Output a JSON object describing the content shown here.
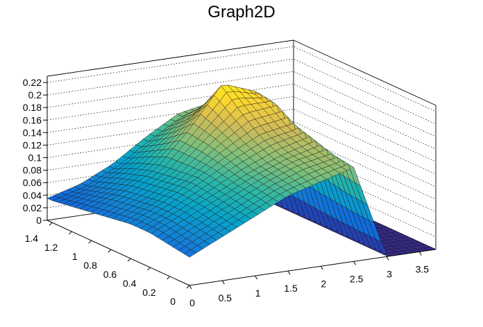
{
  "chart_data": {
    "type": "surface",
    "title": "Graph2D",
    "xlim": [
      0,
      3.75
    ],
    "ylim": [
      0,
      1.45
    ],
    "zlim": [
      0,
      0.23
    ],
    "x_ticks": [
      "0",
      "0.5",
      "1",
      "1.5",
      "2",
      "2.5",
      "3",
      "3.5"
    ],
    "y_ticks": [
      "0",
      "0.2",
      "0.4",
      "0.6",
      "0.8",
      "1",
      "1.2",
      "1.4"
    ],
    "z_ticks": [
      "0",
      "0.02",
      "0.04",
      "0.06",
      "0.08",
      "0.1",
      "0.12",
      "0.14",
      "0.16",
      "0.18",
      "0.2",
      "0.22"
    ],
    "x_values": [
      0,
      0.5,
      1,
      1.5,
      2,
      2.5,
      3,
      3.5
    ],
    "y_values": [
      0,
      0.2,
      0.4,
      0.6,
      0.8,
      1.0,
      1.2,
      1.4
    ],
    "z_values": [
      [
        0.045,
        0.07,
        0.095,
        0.12,
        0.135,
        0.15,
        0.0,
        0.0
      ],
      [
        0.05,
        0.075,
        0.1,
        0.125,
        0.145,
        0.155,
        0.0,
        0.0
      ],
      [
        0.055,
        0.08,
        0.105,
        0.13,
        0.15,
        0.165,
        0.0,
        0.0
      ],
      [
        0.055,
        0.08,
        0.11,
        0.14,
        0.165,
        0.175,
        0.0,
        0.0
      ],
      [
        0.05,
        0.075,
        0.105,
        0.15,
        0.19,
        0.195,
        0.0,
        0.0
      ],
      [
        0.045,
        0.07,
        0.1,
        0.155,
        0.22,
        0.2,
        0.0,
        0.0
      ],
      [
        0.04,
        0.06,
        0.09,
        0.13,
        0.17,
        0.18,
        0.0,
        0.0
      ],
      [
        0.035,
        0.05,
        0.075,
        0.11,
        0.14,
        0.15,
        0.0,
        0.0
      ]
    ],
    "colormap": [
      "#352a87",
      "#0f5cdd",
      "#1481d6",
      "#06a4ca",
      "#2eb7a4",
      "#87bf77",
      "#d1bb59",
      "#fed72d",
      "#f9fb0e"
    ],
    "grid": true
  }
}
